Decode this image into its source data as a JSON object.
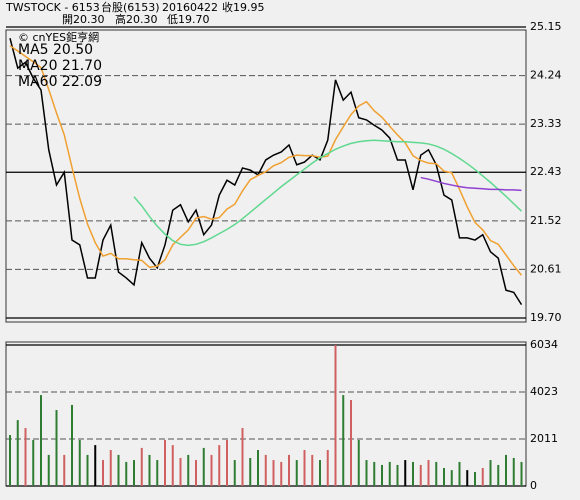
{
  "header": {
    "symbol": "TWSTOCK - 6153",
    "name": "台股(6153)",
    "date": "20160422",
    "close": "收19.95",
    "open": "開20.30",
    "high": "高20.30",
    "low": "低19.70"
  },
  "chart_data": [
    {
      "type": "line",
      "source": "© cnYES鉅亨網",
      "ylim": [
        19.7,
        25.15
      ],
      "yticks": [
        {
          "value": 25.15,
          "label": "25.15"
        },
        24.24,
        23.33,
        22.43,
        21.52,
        20.61,
        {
          "value": 19.7,
          "label": "19.70"
        }
      ],
      "grid_styles": [
        "solid",
        "dashed",
        "dashed",
        "solid",
        "dashed",
        "dashed",
        "solid"
      ],
      "series": [
        {
          "color": "#000000",
          "values": [
            24.94,
            24.38,
            24.49,
            24.19,
            23.97,
            22.85,
            22.19,
            22.43,
            21.16,
            21.07,
            20.45,
            20.45,
            21.16,
            21.44,
            20.56,
            20.45,
            20.32,
            21.11,
            20.82,
            20.64,
            21.07,
            21.72,
            21.82,
            21.5,
            21.72,
            21.26,
            21.44,
            22.0,
            22.28,
            22.19,
            22.51,
            22.47,
            22.38,
            22.66,
            22.75,
            22.81,
            22.94,
            22.57,
            22.62,
            22.75,
            22.66,
            23.03,
            24.16,
            23.78,
            23.93,
            23.45,
            23.41,
            23.31,
            23.22,
            23.07,
            22.66,
            22.66,
            22.1,
            22.75,
            22.85,
            22.57,
            22.0,
            21.91,
            21.2,
            21.2,
            21.16,
            21.26,
            20.94,
            20.82,
            20.22,
            20.18,
            19.95
          ]
        },
        {
          "name": "MA5 20.50",
          "color": "#f0a030",
          "values": [
            24.8,
            24.7,
            24.6,
            24.5,
            24.39,
            23.98,
            23.54,
            23.13,
            22.52,
            21.94,
            21.46,
            21.11,
            20.86,
            20.91,
            20.81,
            20.81,
            20.79,
            20.78,
            20.65,
            20.67,
            20.79,
            21.07,
            21.21,
            21.35,
            21.57,
            21.6,
            21.55,
            21.58,
            21.74,
            21.83,
            22.08,
            22.29,
            22.37,
            22.44,
            22.55,
            22.61,
            22.71,
            22.75,
            22.74,
            22.74,
            22.71,
            22.73,
            23.04,
            23.28,
            23.51,
            23.67,
            23.75,
            23.58,
            23.46,
            23.29,
            23.13,
            22.98,
            22.74,
            22.65,
            22.6,
            22.59,
            22.45,
            22.42,
            22.11,
            21.78,
            21.49,
            21.35,
            21.15,
            21.08,
            20.88,
            20.68,
            20.5
          ]
        },
        {
          "name": "MA20 21.70",
          "color": "#60d890",
          "values": [
            null,
            null,
            null,
            null,
            null,
            null,
            null,
            null,
            null,
            null,
            null,
            null,
            null,
            null,
            null,
            null,
            21.97,
            21.8,
            21.6,
            21.42,
            21.27,
            21.15,
            21.08,
            21.06,
            21.08,
            21.13,
            21.2,
            21.28,
            21.36,
            21.45,
            21.56,
            21.68,
            21.8,
            21.92,
            22.04,
            22.16,
            22.27,
            22.38,
            22.49,
            22.6,
            22.7,
            22.78,
            22.86,
            22.92,
            22.97,
            23.0,
            23.02,
            23.03,
            23.02,
            23.01,
            23.0,
            23.0,
            22.99,
            22.98,
            22.96,
            22.92,
            22.86,
            22.78,
            22.69,
            22.59,
            22.48,
            22.36,
            22.24,
            22.11,
            21.98,
            21.84,
            21.7
          ]
        },
        {
          "name": "MA60 22.09",
          "color": "#9040d0",
          "values": [
            null,
            null,
            null,
            null,
            null,
            null,
            null,
            null,
            null,
            null,
            null,
            null,
            null,
            null,
            null,
            null,
            null,
            null,
            null,
            null,
            null,
            null,
            null,
            null,
            null,
            null,
            null,
            null,
            null,
            null,
            null,
            null,
            null,
            null,
            null,
            null,
            null,
            null,
            null,
            null,
            null,
            null,
            null,
            null,
            null,
            null,
            null,
            null,
            null,
            null,
            null,
            null,
            null,
            22.33,
            22.3,
            22.26,
            22.22,
            22.19,
            22.16,
            22.14,
            22.13,
            22.12,
            22.11,
            22.11,
            22.1,
            22.1,
            22.09
          ]
        }
      ]
    },
    {
      "type": "bar",
      "ylim": [
        0,
        6034
      ],
      "yticks": [
        6034,
        4023,
        2011,
        0
      ],
      "grid_styles": [
        "solid",
        "dashed",
        "dashed",
        "solid"
      ],
      "values": [
        2180,
        2820,
        2480,
        1970,
        3890,
        1330,
        3250,
        1330,
        3470,
        1970,
        1330,
        1750,
        1110,
        1540,
        1330,
        1030,
        1110,
        1630,
        1330,
        1110,
        1970,
        1750,
        1200,
        1330,
        1110,
        1630,
        1330,
        1750,
        1970,
        1110,
        2480,
        1200,
        1540,
        1330,
        1110,
        1030,
        1330,
        1110,
        1540,
        1330,
        1110,
        1540,
        6034,
        3890,
        3680,
        1970,
        1110,
        1030,
        900,
        1030,
        900,
        1110,
        1030,
        900,
        1110,
        1030,
        770,
        680,
        1030,
        680,
        600,
        770,
        1110,
        900,
        1330,
        1200,
        1030
      ],
      "colors": [
        "#2e7d32",
        "#2e7d32",
        "#d06060",
        "#2e7d32",
        "#2e7d32",
        "#2e7d32",
        "#2e7d32",
        "#d06060",
        "#2e7d32",
        "#2e7d32",
        "#2e7d32",
        "#000000",
        "#d06060",
        "#d06060",
        "#2e7d32",
        "#2e7d32",
        "#2e7d32",
        "#d06060",
        "#2e7d32",
        "#2e7d32",
        "#d06060",
        "#d06060",
        "#d06060",
        "#2e7d32",
        "#d06060",
        "#2e7d32",
        "#d06060",
        "#d06060",
        "#d06060",
        "#2e7d32",
        "#d06060",
        "#2e7d32",
        "#2e7d32",
        "#d06060",
        "#d06060",
        "#d06060",
        "#d06060",
        "#2e7d32",
        "#d06060",
        "#d06060",
        "#2e7d32",
        "#d06060",
        "#d06060",
        "#2e7d32",
        "#d06060",
        "#2e7d32",
        "#2e7d32",
        "#2e7d32",
        "#2e7d32",
        "#2e7d32",
        "#2e7d32",
        "#000000",
        "#2e7d32",
        "#d06060",
        "#d06060",
        "#2e7d32",
        "#2e7d32",
        "#2e7d32",
        "#2e7d32",
        "#000000",
        "#2e7d32",
        "#d06060",
        "#2e7d32",
        "#2e7d32",
        "#2e7d32",
        "#2e7d32",
        "#2e7d32"
      ]
    }
  ]
}
